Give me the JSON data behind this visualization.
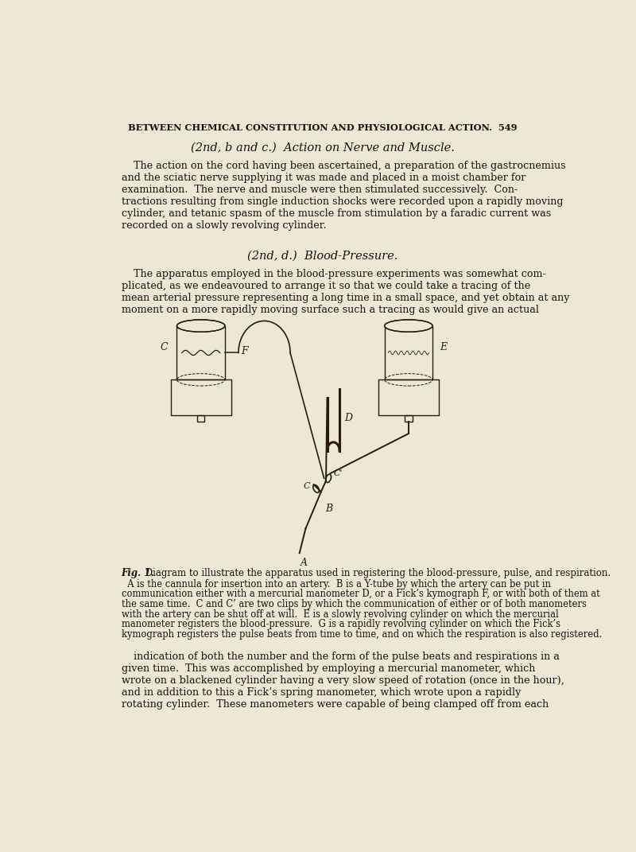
{
  "bg_color": "#ede8d5",
  "text_color": "#1a1008",
  "diagram_color": "#2a1a08",
  "header": "BETWEEN CHEMICAL CONSTITUTION AND PHYSIOLOGICAL ACTION.  549",
  "sec1_title": "(2nd, b and c.)  Action on Nerve and Muscle.",
  "sec1_lines": [
    "The action on the cord having been ascertained, a preparation of the gastrocnemius",
    "and the sciatic nerve supplying it was made and placed in a moist chamber for",
    "examination.  The nerve and muscle were then stimulated successively.  Con-",
    "tractions resulting from single induction shocks were recorded upon a rapidly moving",
    "cylinder, and tetanic spasm of the muscle from stimulation by a faradic current was",
    "recorded on a slowly revolving cylinder."
  ],
  "sec2_title": "(2nd, d.)  Blood-Pressure.",
  "sec2_lines": [
    "The apparatus employed in the blood-pressure experiments was somewhat com-",
    "plicated, as we endeavoured to arrange it so that we could take a tracing of the",
    "mean arterial pressure representing a long time in a small space, and yet obtain at any",
    "moment on a more rapidly moving surface such a tracing as would give an actual"
  ],
  "fig_caption_bold": "Fig. 1.",
  "fig_caption_rest": " Diagram to illustrate the apparatus used in registering the blood-pressure, pulse, and respiration.",
  "fig_desc_lines": [
    "  A is the cannula for insertion into an artery.  B is a Y-tube by which the artery can be put in",
    "communication either with a mercurial manometer D, or a Fick’s kymograph F, or with both of them at",
    "the same time.  C and C’ are two clips by which the communication of either or of both manometers",
    "with the artery can be shut off at will.  E is a slowly revolving cylinder on which the mercurial",
    "manometer registers the blood-pressure.  G is a rapidly revolving cylinder on which the Fick’s",
    "kymograph registers the pulse beats from time to time, and on which the respiration is also registered."
  ],
  "sec3_lines": [
    "indication of both the number and the form of the pulse beats and respirations in a",
    "given time.  This was accomplished by employing a mercurial manometer, which",
    "wrote on a blackened cylinder having a very slow speed of rotation (once in the hour),",
    "and in addition to this a Fick’s spring manometer, which wrote upon a rapidly",
    "rotating cylinder.  These manometers were capable of being clamped off from each"
  ]
}
